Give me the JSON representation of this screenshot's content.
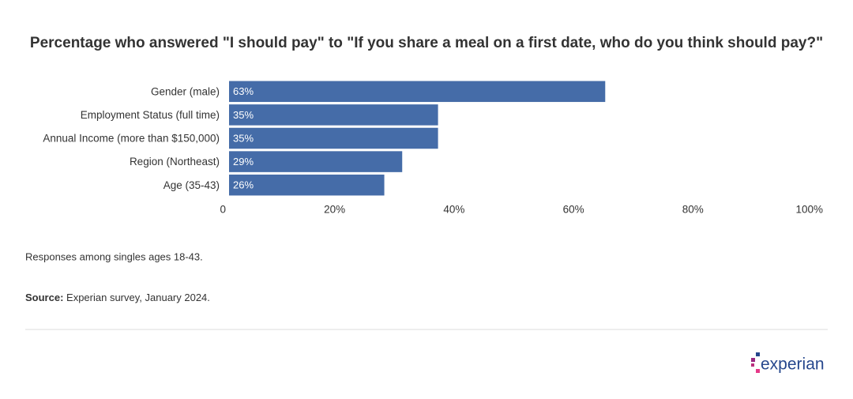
{
  "chart_data": {
    "type": "bar",
    "orientation": "horizontal",
    "title": "Percentage who answered \"I should pay\" to \"If you share a meal on a first date, who do you think should pay?\"",
    "categories": [
      "Gender (male)",
      "Employment Status (full time)",
      "Annual Income (more than $150,000)",
      "Region (Northeast)",
      "Age (35-43)"
    ],
    "values": [
      63,
      35,
      35,
      29,
      26
    ],
    "value_labels": [
      "63%",
      "35%",
      "35%",
      "29%",
      "26%"
    ],
    "color": "#456ca8",
    "xlim": [
      0,
      100
    ],
    "xticks": [
      0,
      {
        "value": 20,
        "label": "20%"
      },
      {
        "value": 40,
        "label": "40%"
      },
      {
        "value": 60,
        "label": "60%"
      },
      {
        "value": 80,
        "label": "80%"
      },
      {
        "value": 100,
        "label": "100%"
      }
    ],
    "grid": false,
    "note": "Responses among singles ages 18-43.",
    "source_label": "Source:",
    "source": "Experian survey, January 2024.",
    "logo": "experian"
  }
}
